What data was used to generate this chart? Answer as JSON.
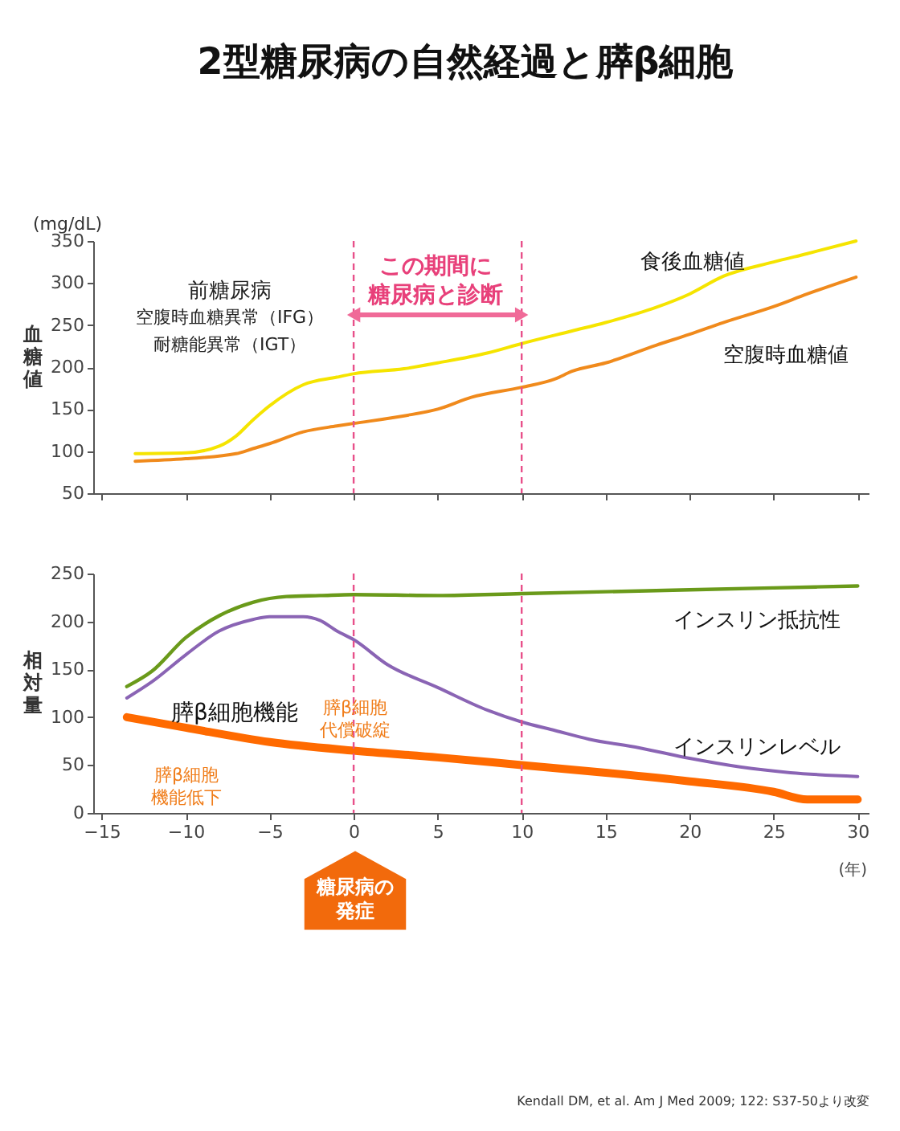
{
  "chart_data": [
    {
      "type": "line",
      "title": "2型糖尿病の自然経過と膵β細胞",
      "ylabel": "血糖値",
      "xlim": [
        -15.5,
        30.7
      ],
      "xticks": [
        -15,
        -10,
        -5,
        0,
        5,
        10,
        15,
        20,
        25,
        30
      ],
      "ylim": [
        50,
        350
      ],
      "yticks": [
        50,
        100,
        150,
        200,
        250,
        300,
        350
      ],
      "tick_labels": "y",
      "series": [
        {
          "name": "食後血糖値",
          "color": "#f5e400",
          "x": [
            -13,
            -10,
            -8,
            -7,
            -6,
            -5,
            -3,
            -1,
            0,
            3,
            5,
            8,
            10,
            13,
            15,
            18,
            20,
            22,
            25,
            27,
            29.9
          ],
          "values": [
            97,
            98,
            106,
            118,
            137,
            154,
            179,
            188,
            192,
            198,
            205,
            217,
            228,
            243,
            253,
            271,
            287,
            308,
            325,
            335,
            350
          ]
        },
        {
          "name": "空腹時血糖値",
          "color": "#f08a1c",
          "x": [
            -13,
            -10,
            -7,
            -6,
            -5,
            -3,
            -1,
            0,
            3,
            5,
            7,
            10,
            12,
            13,
            15,
            18,
            20,
            22,
            25,
            27,
            29.9
          ],
          "values": [
            88,
            91,
            97,
            103,
            109,
            123,
            130,
            133,
            142,
            150,
            164,
            176,
            186,
            195,
            205,
            226,
            239,
            253,
            272,
            287,
            307
          ]
        }
      ],
      "ref_lines": [
        {
          "axis": "x",
          "value": 0,
          "color": "#e8508a",
          "line_style": "dashed"
        },
        {
          "axis": "x",
          "value": 10,
          "color": "#e8508a",
          "line_style": "dashed"
        }
      ],
      "annotations": [
        "(mg/dL)",
        "前糖尿病",
        "空腹時血糖異常（IFG）",
        "耐糖能異常（IGT）",
        "この期間に",
        "糖尿病と診断"
      ]
    },
    {
      "type": "line",
      "ylabel": "相対量",
      "xlabel": "(年)",
      "xlim": [
        -15.5,
        30.7
      ],
      "xticks": [
        -15,
        -10,
        -5,
        0,
        5,
        10,
        15,
        20,
        25,
        30
      ],
      "ylim": [
        0,
        250
      ],
      "yticks": [
        0,
        50,
        100,
        150,
        200,
        250
      ],
      "series": [
        {
          "name": "インスリン抵抗性",
          "color": "#6a9a1a",
          "x": [
            -13.5,
            -12,
            -10,
            -8,
            -6,
            -4,
            -2,
            0,
            5,
            10,
            15,
            20,
            25,
            30
          ],
          "values": [
            132,
            148,
            183,
            206,
            220,
            226,
            227,
            228,
            227,
            229,
            231,
            233,
            235,
            237
          ]
        },
        {
          "name": "インスリンレベル",
          "color": "#8a64b4",
          "x": [
            -13.5,
            -12,
            -10,
            -8,
            -6,
            -5,
            -3,
            -2,
            -1,
            0,
            2,
            5,
            8,
            10,
            12,
            14,
            17,
            20,
            23,
            26,
            30
          ],
          "values": [
            120,
            137,
            165,
            190,
            202,
            205,
            205,
            201,
            190,
            181,
            155,
            131,
            107,
            95,
            86,
            77,
            68,
            57,
            48,
            42,
            38
          ]
        },
        {
          "name": "膵β細胞機能",
          "color": "#ff6a00",
          "x": [
            -13.5,
            -10,
            -5,
            0,
            5,
            10,
            15,
            20,
            25,
            27,
            30
          ],
          "values": [
            100,
            89,
            74,
            65,
            58,
            50,
            42,
            33,
            22,
            14,
            14
          ]
        }
      ],
      "ref_lines": [
        {
          "axis": "x",
          "value": 0,
          "color": "#e8508a",
          "line_style": "dashed"
        },
        {
          "axis": "x",
          "value": 10,
          "color": "#e8508a",
          "line_style": "dashed"
        }
      ],
      "annotations": [
        "膵β細胞代償破綻",
        "膵β細胞機能低下",
        "糖尿病の発症",
        "Kendall DM, et al. Am J Med 2009; 122: S37-50より改変"
      ]
    }
  ]
}
